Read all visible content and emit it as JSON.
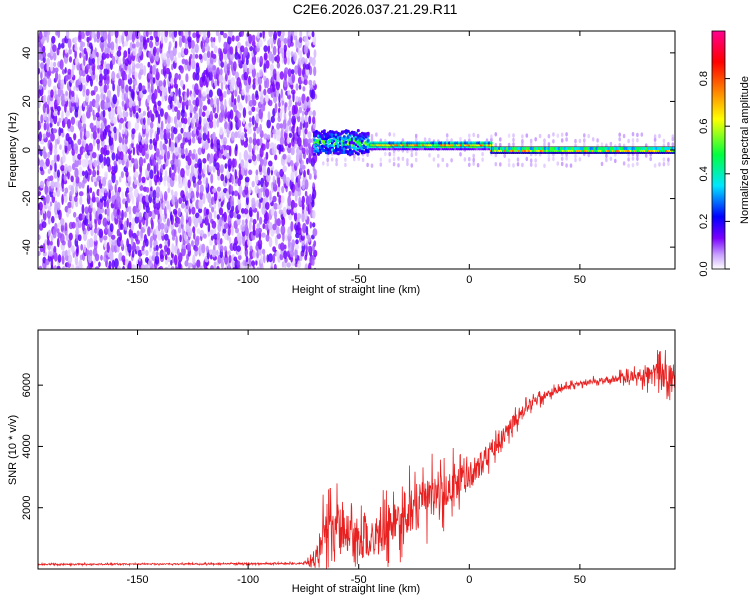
{
  "figure": {
    "title": "C2E6.2026.037.21.29.R11"
  },
  "chart_data": [
    {
      "type": "heatmap",
      "title": "C2E6.2026.037.21.29.R11",
      "xlabel": "Height of straight line (km)",
      "ylabel": "Frequency (Hz)",
      "xlim": [
        -195,
        93
      ],
      "ylim": [
        -49,
        49
      ],
      "x_ticks": [
        -150,
        -100,
        -50,
        0,
        50
      ],
      "y_ticks": [
        -40,
        -20,
        0,
        20,
        40
      ],
      "colorbar": {
        "label": "Normalized spectral amplitude",
        "range": [
          0,
          1
        ],
        "ticks": [
          0.0,
          0.2,
          0.4,
          0.6,
          0.8
        ],
        "colormap": [
          "#ffffff",
          "#c8a0ff",
          "#7a00ff",
          "#0000ff",
          "#00e6ff",
          "#00ff40",
          "#ffff00",
          "#ff8000",
          "#ff0000",
          "#ff0090"
        ]
      },
      "regions": [
        {
          "x_range": [
            -195,
            -70
          ],
          "description": "broadband noise",
          "amplitude_range": [
            0.0,
            0.15
          ],
          "freq_range": [
            -49,
            49
          ]
        },
        {
          "x_range": [
            -70,
            -45
          ],
          "description": "signal onset",
          "center_freq": 3,
          "width_hz": 8,
          "peak_amplitude": 0.5
        },
        {
          "x_range": [
            -45,
            10
          ],
          "description": "narrowing signal",
          "center_freq": 2,
          "width_hz": 3,
          "peak_amplitude": 0.85
        },
        {
          "x_range": [
            10,
            93
          ],
          "description": "strong narrow carrier",
          "center_freq": 0,
          "width_hz": 2,
          "peak_amplitude": 0.9
        }
      ]
    },
    {
      "type": "line",
      "xlabel": "Height of straight line (km)",
      "ylabel": "SNR (10 * v/v)",
      "xlim": [
        -195,
        93
      ],
      "ylim": [
        0,
        7800
      ],
      "x_ticks": [
        -150,
        -100,
        -50,
        0,
        50
      ],
      "y_ticks": [
        2000,
        4000,
        6000
      ],
      "color": "#e82020",
      "series": [
        {
          "x": [
            -195,
            -150,
            -100,
            -75,
            -70,
            -65,
            -60,
            -55,
            -50,
            -45,
            -40,
            -35,
            -30,
            -25,
            -20,
            -15,
            -10,
            -5,
            0,
            5,
            10,
            15,
            20,
            25,
            30,
            35,
            40,
            45,
            50,
            55,
            60,
            65,
            70,
            75,
            80,
            85,
            90,
            93
          ],
          "values": [
            150,
            160,
            170,
            180,
            250,
            1400,
            1500,
            1200,
            1000,
            900,
            1100,
            1400,
            1800,
            2000,
            2200,
            2400,
            2600,
            2800,
            3000,
            3400,
            3900,
            4300,
            4800,
            5200,
            5500,
            5700,
            5850,
            5950,
            6050,
            6100,
            6150,
            6200,
            6250,
            6300,
            6350,
            6350,
            6300,
            6300
          ],
          "noise_amplitude": [
            40,
            40,
            40,
            60,
            400,
            1600,
            1600,
            1400,
            1400,
            1300,
            1400,
            1500,
            1600,
            1600,
            1500,
            1400,
            1300,
            1200,
            1100,
            900,
            700,
            600,
            500,
            400,
            350,
            300,
            250,
            200,
            200,
            200,
            200,
            250,
            300,
            350,
            600,
            800,
            900,
            600
          ]
        }
      ]
    }
  ]
}
